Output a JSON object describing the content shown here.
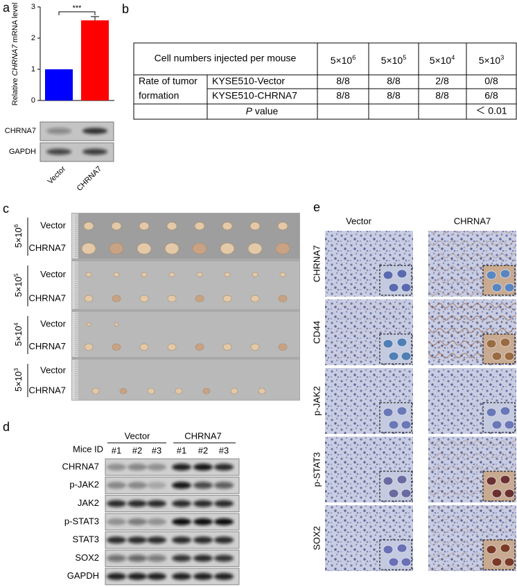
{
  "panel_a": {
    "label": "a",
    "type": "bar",
    "y_label": {
      "pre": "Relative ",
      "italic": "CHRNA7",
      "post": " mRNA level"
    },
    "categories": [
      "Vector",
      "CHRNA7"
    ],
    "values": [
      1,
      2.57
    ],
    "errors": [
      0,
      0.12
    ],
    "colors": [
      "#0000ff",
      "#ff0000"
    ],
    "ylim": [
      0,
      3
    ],
    "yticks": [
      0,
      1,
      2,
      3
    ],
    "significance": "***",
    "blots": [
      "CHRNA7",
      "GAPDH"
    ]
  },
  "panel_b": {
    "label": "b",
    "header": [
      "Cell numbers injected per mouse",
      {
        "base": "5×10",
        "exp": "6"
      },
      {
        "base": "5×10",
        "exp": "5"
      },
      {
        "base": "5×10",
        "exp": "4"
      },
      {
        "base": "5×10",
        "exp": "3"
      }
    ],
    "row_group": [
      "Rate of tumor",
      "formation"
    ],
    "rows": [
      {
        "name": "KYSE510-Vector",
        "cells": [
          "8/8",
          "8/8",
          "2/8",
          "0/8"
        ]
      },
      {
        "name": "KYSE510-CHRNA7",
        "cells": [
          "8/8",
          "8/8",
          "8/8",
          "6/8"
        ]
      }
    ],
    "p_row": {
      "italic": "P",
      "rest": " value",
      "value": "＜ 0.01"
    }
  },
  "panel_c": {
    "label": "c",
    "doses": [
      {
        "base": "5×10",
        "exp": "6"
      },
      {
        "base": "5×10",
        "exp": "5"
      },
      {
        "base": "5×10",
        "exp": "4"
      },
      {
        "base": "5×10",
        "exp": "3"
      }
    ],
    "groups": [
      "Vector",
      "CHRNA7"
    ]
  },
  "panel_d": {
    "label": "d",
    "mice_id": "Mice ID",
    "groups": [
      "Vector",
      "CHRNA7"
    ],
    "mice": [
      "#1",
      "#2",
      "#3"
    ],
    "proteins": [
      "CHRNA7",
      "p-JAK2",
      "JAK2",
      "p-STAT3",
      "STAT3",
      "SOX2",
      "GAPDH"
    ]
  },
  "panel_e": {
    "label": "e",
    "columns": [
      "Vector",
      "CHRNA7"
    ],
    "rows": [
      "CHRNA7",
      "CD44",
      "p-JAK2",
      "p-STAT3",
      "SOX2"
    ]
  }
}
